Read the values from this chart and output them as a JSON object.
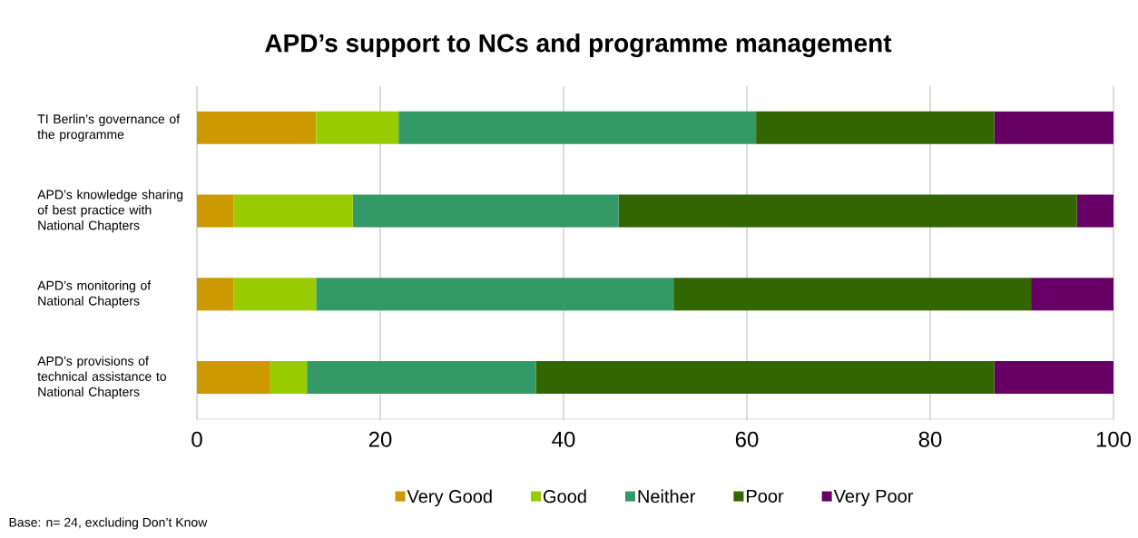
{
  "chart_data": {
    "type": "bar",
    "orientation": "horizontal",
    "stacked": true,
    "title": "APD’s support to NCs and programme management",
    "categories": [
      "TI Berlin’s governance of the programme",
      "APD’s knowledge sharing of best practice with National Chapters",
      "APD’s monitoring of National Chapters",
      "APD’s provisions of technical assistance to National Chapters"
    ],
    "series": [
      {
        "name": "Very Good",
        "color": "#cc9900",
        "values": [
          13,
          4,
          4,
          8
        ]
      },
      {
        "name": "Good",
        "color": "#99cc00",
        "values": [
          9,
          13,
          9,
          4
        ]
      },
      {
        "name": "Neither",
        "color": "#339966",
        "values": [
          39,
          29,
          39,
          25
        ]
      },
      {
        "name": "Poor",
        "color": "#336600",
        "values": [
          26,
          50,
          39,
          50
        ]
      },
      {
        "name": "Very Poor",
        "color": "#660066",
        "values": [
          13,
          4,
          9,
          13
        ]
      }
    ],
    "xlim": [
      0,
      100
    ],
    "xticks": [
      0,
      20,
      40,
      60,
      80,
      100
    ],
    "grid": "x",
    "legend": "bottom",
    "annotations": [
      "Base: n= 24, excluding Don’t Know"
    ]
  }
}
